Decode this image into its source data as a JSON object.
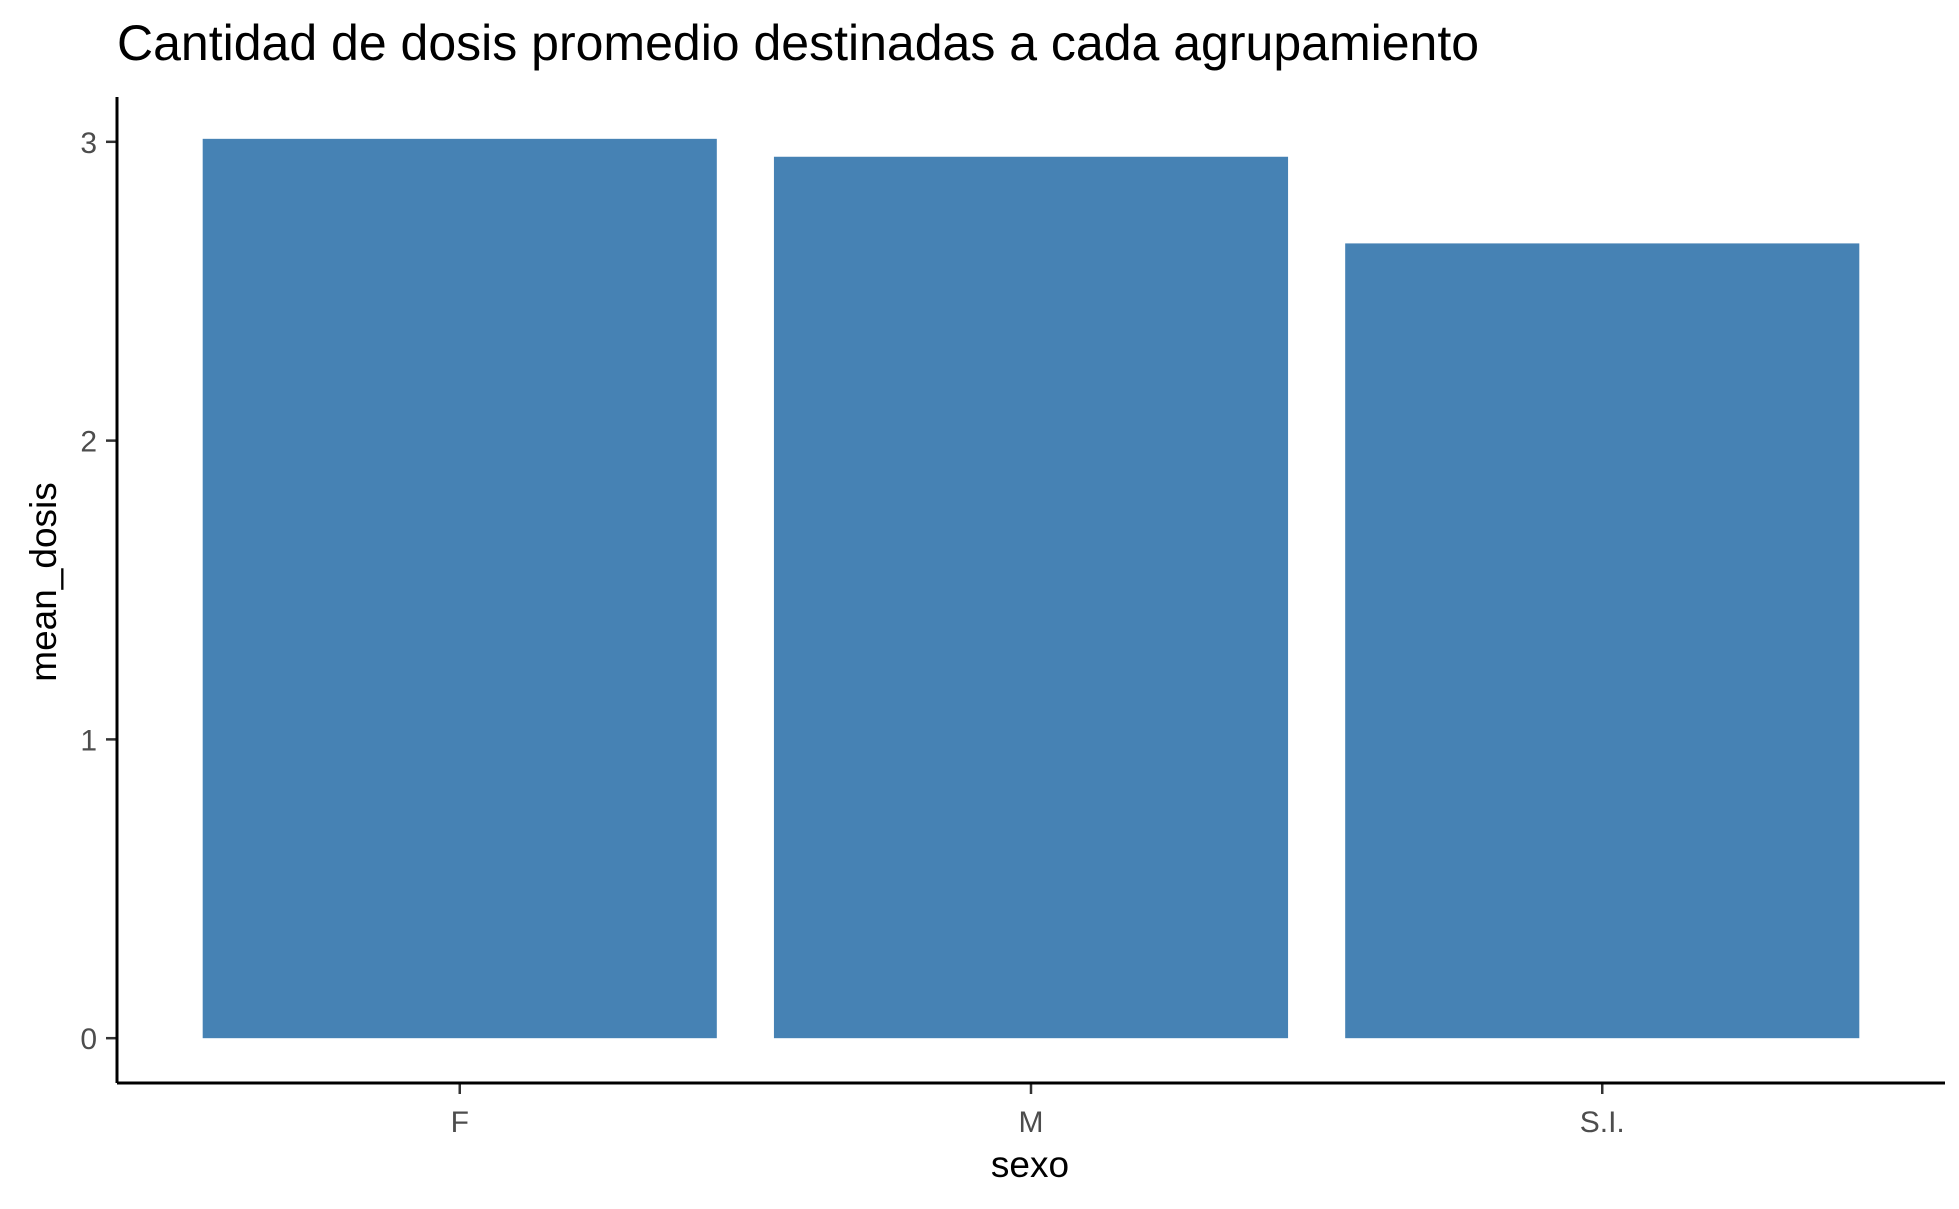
{
  "chart_data": {
    "type": "bar",
    "title": "Cantidad de dosis promedio destinadas a cada agrupamiento",
    "xlabel": "sexo",
    "ylabel": "mean_dosis",
    "categories": [
      "F",
      "M",
      "S.I."
    ],
    "values": [
      3.01,
      2.95,
      2.66
    ],
    "yticks": [
      "0",
      "1",
      "2",
      "3"
    ],
    "ylim": [
      -0.15,
      3.15
    ],
    "bar_color": "#4682B4",
    "grid": false,
    "legend": "none"
  }
}
